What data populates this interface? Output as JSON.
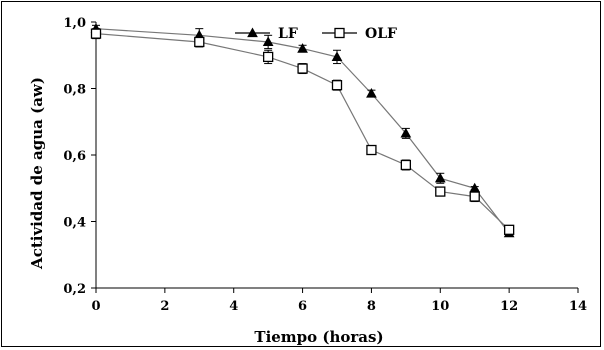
{
  "chart_data": {
    "type": "line",
    "xlabel": "Tiempo (horas)",
    "ylabel": "Actividad de agua (aw)",
    "xlim": [
      0,
      14
    ],
    "ylim": [
      0.2,
      1.0
    ],
    "x_ticks": [
      0,
      2,
      4,
      6,
      8,
      10,
      12,
      14
    ],
    "x_tick_labels": [
      "0",
      "2",
      "4",
      "6",
      "8",
      "10",
      "12",
      "14"
    ],
    "y_ticks": [
      0.2,
      0.4,
      0.6,
      0.8,
      1.0
    ],
    "y_tick_labels": [
      "0,2",
      "0,4",
      "0,6",
      "0,8",
      "1,0"
    ],
    "grid": false,
    "legend_position": "top",
    "series": [
      {
        "name": "LF",
        "marker": "filled-triangle",
        "color": "#000000",
        "line_color": "#777777",
        "x": [
          0,
          3,
          5,
          6,
          7,
          8,
          9,
          10,
          11,
          12
        ],
        "y": [
          0.98,
          0.96,
          0.94,
          0.92,
          0.895,
          0.785,
          0.665,
          0.53,
          0.5,
          0.365
        ],
        "error": [
          0.01,
          0.02,
          0.02,
          0.01,
          0.02,
          0.01,
          0.015,
          0.015,
          0.005,
          0.01
        ]
      },
      {
        "name": "OLF",
        "marker": "open-square",
        "color": "#000000",
        "line_color": "#777777",
        "x": [
          0,
          3,
          5,
          6,
          7,
          8,
          9,
          10,
          11,
          12
        ],
        "y": [
          0.965,
          0.94,
          0.895,
          0.86,
          0.81,
          0.615,
          0.57,
          0.49,
          0.475,
          0.375
        ],
        "error": [
          0.015,
          0.015,
          0.02,
          0.015,
          0.015,
          0.01,
          0.015,
          0.01,
          0.015,
          0.01
        ]
      }
    ]
  }
}
